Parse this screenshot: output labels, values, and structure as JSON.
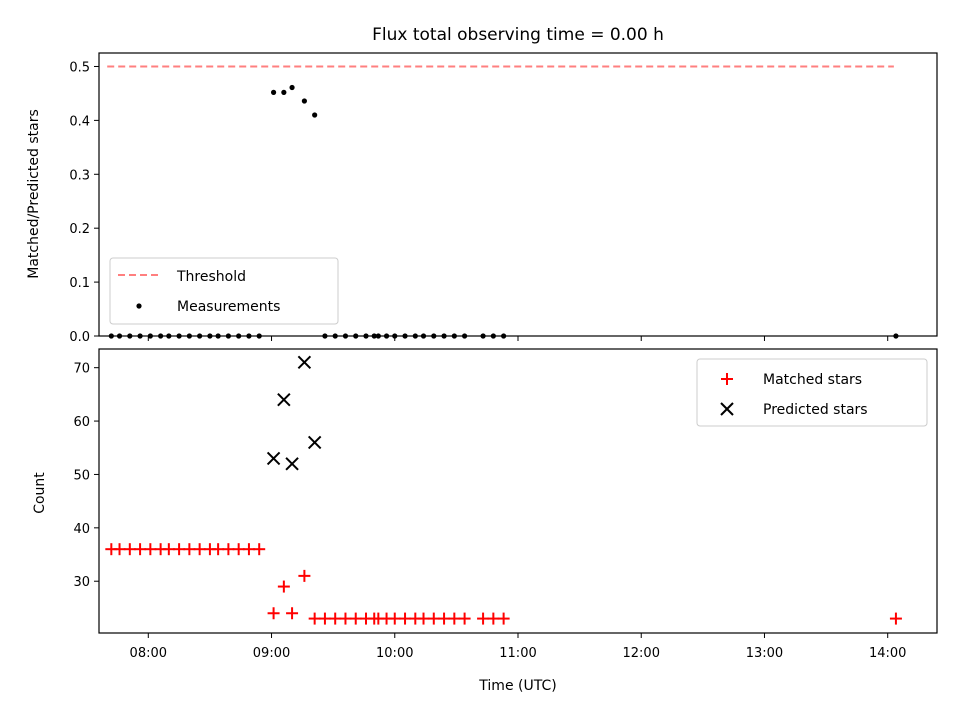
{
  "colors": {
    "threshold": "#ff7f7f",
    "measurement": "#000000",
    "matched": "#ff0000",
    "predicted": "#000000",
    "axes": "#000000",
    "legend_border": "#cccccc"
  },
  "chart_data": [
    {
      "type": "scatter",
      "title": "Flux total observing time = 0.00 h",
      "xlabel": "",
      "ylabel": "Matched/Predicted stars",
      "xlim": [
        "07:36",
        "14:24"
      ],
      "ylim": [
        0,
        0.525
      ],
      "yticks": [
        "0.0",
        "0.1",
        "0.2",
        "0.3",
        "0.4",
        "0.5"
      ],
      "ytick_values": [
        0,
        0.1,
        0.2,
        0.3,
        0.4,
        0.5
      ],
      "legend_position": "lower-left",
      "series": [
        {
          "name": "Threshold",
          "kind": "dashed-line",
          "x": [
            "07:40",
            "14:03"
          ],
          "y": [
            0.5,
            0.5
          ]
        },
        {
          "name": "Measurements",
          "kind": "dot",
          "x": [
            "07:42",
            "07:46",
            "07:51",
            "07:56",
            "08:01",
            "08:06",
            "08:10",
            "08:15",
            "08:20",
            "08:25",
            "08:30",
            "08:34",
            "08:39",
            "08:44",
            "08:49",
            "08:54",
            "09:01",
            "09:06",
            "09:10",
            "09:16",
            "09:21",
            "09:26",
            "09:31",
            "09:36",
            "09:41",
            "09:46",
            "09:50",
            "09:52",
            "09:56",
            "10:00",
            "10:05",
            "10:10",
            "10:14",
            "10:19",
            "10:24",
            "10:29",
            "10:34",
            "10:43",
            "10:48",
            "10:53",
            "14:04"
          ],
          "y": [
            0,
            0,
            0,
            0,
            0,
            0,
            0,
            0,
            0,
            0,
            0,
            0,
            0,
            0,
            0,
            0,
            0.452,
            0.452,
            0.461,
            0.436,
            0.41,
            0,
            0,
            0,
            0,
            0,
            0,
            0,
            0,
            0,
            0,
            0,
            0,
            0,
            0,
            0,
            0,
            0,
            0,
            0,
            0
          ]
        }
      ]
    },
    {
      "type": "scatter",
      "title": "",
      "xlabel": "Time (UTC)",
      "ylabel": "Count",
      "xlim": [
        "07:36",
        "14:24"
      ],
      "ylim": [
        20.3,
        73.5
      ],
      "xticks": [
        "08:00",
        "09:00",
        "10:00",
        "11:00",
        "12:00",
        "13:00",
        "14:00"
      ],
      "yticks": [
        "30",
        "40",
        "50",
        "60",
        "70"
      ],
      "ytick_values": [
        30,
        40,
        50,
        60,
        70
      ],
      "legend_position": "upper-right",
      "series": [
        {
          "name": "Matched stars",
          "kind": "plus",
          "x": [
            "07:42",
            "07:46",
            "07:51",
            "07:56",
            "08:01",
            "08:06",
            "08:10",
            "08:15",
            "08:20",
            "08:25",
            "08:30",
            "08:34",
            "08:39",
            "08:44",
            "08:49",
            "08:54",
            "09:01",
            "09:06",
            "09:10",
            "09:16",
            "09:21",
            "09:26",
            "09:31",
            "09:36",
            "09:41",
            "09:46",
            "09:50",
            "09:52",
            "09:56",
            "10:00",
            "10:05",
            "10:10",
            "10:14",
            "10:19",
            "10:24",
            "10:29",
            "10:34",
            "10:43",
            "10:48",
            "10:53",
            "14:04"
          ],
          "y": [
            36,
            36,
            36,
            36,
            36,
            36,
            36,
            36,
            36,
            36,
            36,
            36,
            36,
            36,
            36,
            36,
            24,
            29,
            24,
            31,
            23,
            23,
            23,
            23,
            23,
            23,
            23,
            23,
            23,
            23,
            23,
            23,
            23,
            23,
            23,
            23,
            23,
            23,
            23,
            23,
            23
          ]
        },
        {
          "name": "Predicted stars",
          "kind": "x",
          "x": [
            "09:01",
            "09:06",
            "09:10",
            "09:16",
            "09:21"
          ],
          "y": [
            53,
            64,
            52,
            71,
            56
          ]
        }
      ]
    }
  ]
}
